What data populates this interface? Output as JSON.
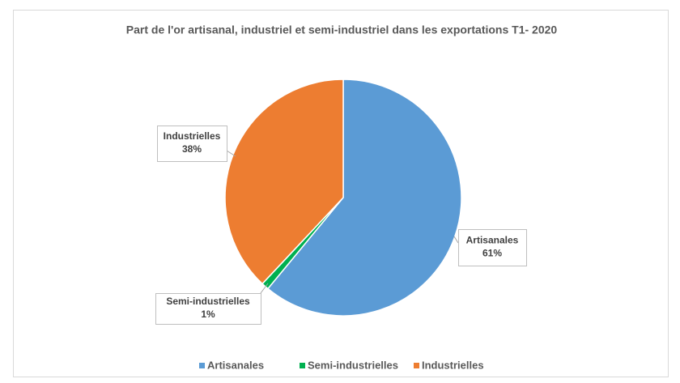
{
  "chart_data": {
    "type": "pie",
    "title": "Part de l'or artisanal, industriel et semi-industriel dans les exportations T1- 2020",
    "categories": [
      "Artisanales",
      "Semi-industrielles",
      "Industrielles"
    ],
    "values": [
      61,
      1,
      38
    ],
    "value_labels": [
      "61%",
      "1%",
      "38%"
    ],
    "colors": [
      "#5b9bd5",
      "#00b050",
      "#ed7d31"
    ],
    "legend": "bottom"
  }
}
